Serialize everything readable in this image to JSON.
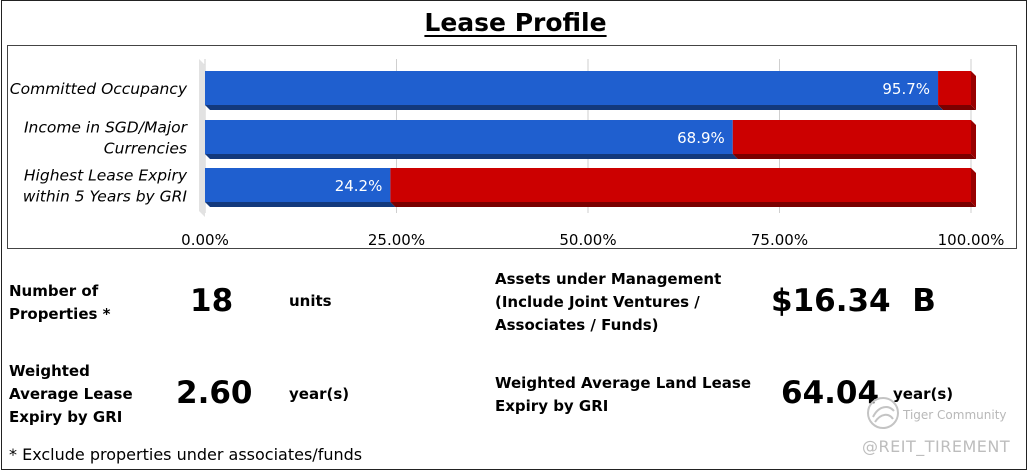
{
  "title": "Lease Profile",
  "chart_data": {
    "type": "bar",
    "orientation": "horizontal",
    "stacked": true,
    "categories": [
      "Committed Occupancy",
      "Income in SGD/Major Currencies",
      "Highest Lease Expiry within 5 Years by GRI"
    ],
    "category_labels": [
      [
        "Committed Occupancy"
      ],
      [
        "Income in SGD/Major",
        "Currencies"
      ],
      [
        "Highest Lease Expiry",
        "within 5 Years by GRI"
      ]
    ],
    "series": [
      {
        "values": [
          95.7,
          68.9,
          24.2
        ],
        "color": "#1f5fcf"
      },
      {
        "values": [
          4.3,
          31.1,
          75.8
        ],
        "color": "#cc0000"
      }
    ],
    "data_labels": [
      "95.7%",
      "68.9%",
      "24.2%"
    ],
    "xlim": [
      0,
      100
    ],
    "x_ticks": [
      "0.00%",
      "25.00%",
      "50.00%",
      "75.00%",
      "100.00%"
    ],
    "grid": true
  },
  "stats": {
    "properties": {
      "label": [
        "Number of",
        "Properties *"
      ],
      "value": "18",
      "unit": "units"
    },
    "aum": {
      "label": [
        "Assets under Management",
        "(Include Joint Ventures /",
        "Associates / Funds)"
      ],
      "value": "$16.34  B"
    },
    "wale": {
      "label": [
        "Weighted",
        "Average Lease",
        "Expiry by GRI"
      ],
      "value": "2.60",
      "unit": "year(s)"
    },
    "land": {
      "label": [
        "Weighted Average Land Lease",
        "Expiry by GRI"
      ],
      "value": "64.04",
      "unit": "year(s)"
    }
  },
  "footnote": "* Exclude properties under associates/funds",
  "watermark": {
    "brand": "Tiger Community",
    "handle": "@REIT_TIREMENT",
    "icon": "tiger-community-logo-icon"
  }
}
